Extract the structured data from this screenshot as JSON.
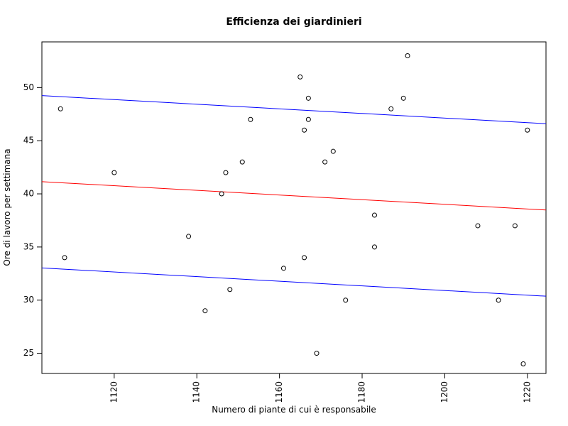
{
  "chart_data": {
    "type": "scatter",
    "title": "Efficienza dei giardinieri",
    "xlabel": "Numero di piante di cui è responsabile",
    "ylabel": "Ore di lavoro per settimana",
    "xlim": [
      1102.5,
      1224.5
    ],
    "ylim": [
      23.1,
      54.3
    ],
    "xticks": [
      1120,
      1140,
      1160,
      1180,
      1200,
      1220
    ],
    "yticks": [
      25,
      30,
      35,
      40,
      45,
      50
    ],
    "grid": false,
    "points": [
      {
        "x": 1107,
        "y": 48
      },
      {
        "x": 1108,
        "y": 34
      },
      {
        "x": 1120,
        "y": 42
      },
      {
        "x": 1138,
        "y": 36
      },
      {
        "x": 1142,
        "y": 29
      },
      {
        "x": 1146,
        "y": 40
      },
      {
        "x": 1147,
        "y": 42
      },
      {
        "x": 1148,
        "y": 31
      },
      {
        "x": 1151,
        "y": 43
      },
      {
        "x": 1153,
        "y": 47
      },
      {
        "x": 1161,
        "y": 33
      },
      {
        "x": 1165,
        "y": 51
      },
      {
        "x": 1166,
        "y": 46
      },
      {
        "x": 1166,
        "y": 34
      },
      {
        "x": 1167,
        "y": 49
      },
      {
        "x": 1167,
        "y": 47
      },
      {
        "x": 1169,
        "y": 25
      },
      {
        "x": 1171,
        "y": 43
      },
      {
        "x": 1173,
        "y": 44
      },
      {
        "x": 1176,
        "y": 30
      },
      {
        "x": 1183,
        "y": 38
      },
      {
        "x": 1183,
        "y": 35
      },
      {
        "x": 1187,
        "y": 48
      },
      {
        "x": 1190,
        "y": 49
      },
      {
        "x": 1191,
        "y": 53
      },
      {
        "x": 1208,
        "y": 37
      },
      {
        "x": 1213,
        "y": 30
      },
      {
        "x": 1217,
        "y": 37
      },
      {
        "x": 1219,
        "y": 24
      },
      {
        "x": 1220,
        "y": 46
      }
    ],
    "lines": [
      {
        "color": "#ff0000",
        "x": [
          1102.5,
          1224.5
        ],
        "y": [
          41.15,
          38.48
        ]
      },
      {
        "color": "#0000ff",
        "x": [
          1102.5,
          1224.5
        ],
        "y": [
          49.25,
          46.6
        ]
      },
      {
        "color": "#0000ff",
        "x": [
          1102.5,
          1224.5
        ],
        "y": [
          33.03,
          30.37
        ]
      }
    ]
  }
}
